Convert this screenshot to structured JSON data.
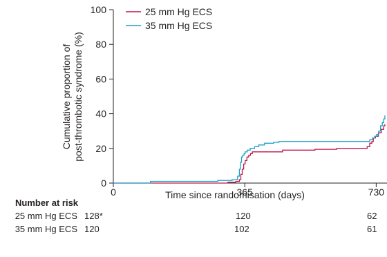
{
  "chart_data": {
    "type": "line",
    "title": "",
    "xlabel": "Time since randomisation (days)",
    "ylabel": [
      "Cumulative proportion of",
      "post-thrombotic syndrome (%)"
    ],
    "xlim": [
      0,
      760
    ],
    "ylim": [
      0,
      100
    ],
    "x_ticks": [
      0,
      365,
      730
    ],
    "y_ticks": [
      0,
      20,
      40,
      60,
      80,
      100
    ],
    "legend": "top-left",
    "series": [
      {
        "name": "25 mm Hg ECS",
        "color": "#c0144c",
        "steps": [
          [
            0,
            0
          ],
          [
            318,
            0.5
          ],
          [
            340,
            1
          ],
          [
            350,
            2
          ],
          [
            354,
            5
          ],
          [
            358,
            8
          ],
          [
            362,
            11
          ],
          [
            366,
            13
          ],
          [
            371,
            15
          ],
          [
            376,
            16
          ],
          [
            381,
            17
          ],
          [
            386,
            18
          ],
          [
            470,
            19
          ],
          [
            560,
            19.5
          ],
          [
            620,
            20
          ],
          [
            690,
            20
          ],
          [
            705,
            21
          ],
          [
            712,
            23
          ],
          [
            718,
            24
          ],
          [
            722,
            26
          ],
          [
            728,
            27
          ],
          [
            736,
            29
          ],
          [
            744,
            31
          ],
          [
            751,
            33
          ],
          [
            754,
            34
          ]
        ]
      },
      {
        "name": "35 mm Hg ECS",
        "color": "#1ba3c6",
        "steps": [
          [
            0,
            0
          ],
          [
            100,
            0
          ],
          [
            103,
            1
          ],
          [
            250,
            1
          ],
          [
            290,
            1.5
          ],
          [
            330,
            2
          ],
          [
            345,
            4
          ],
          [
            350,
            8
          ],
          [
            353,
            12
          ],
          [
            356,
            15
          ],
          [
            359,
            16
          ],
          [
            363,
            17
          ],
          [
            366,
            18
          ],
          [
            372,
            19
          ],
          [
            380,
            20
          ],
          [
            392,
            21
          ],
          [
            404,
            22
          ],
          [
            420,
            23
          ],
          [
            445,
            23.5
          ],
          [
            460,
            24
          ],
          [
            700,
            24
          ],
          [
            712,
            25
          ],
          [
            720,
            26
          ],
          [
            726,
            27
          ],
          [
            731,
            28
          ],
          [
            737,
            30
          ],
          [
            742,
            33
          ],
          [
            747,
            35
          ],
          [
            751,
            37
          ],
          [
            754,
            39
          ]
        ]
      }
    ],
    "number_at_risk": {
      "title": "Number at risk",
      "rows": [
        {
          "label": "25 mm Hg ECS",
          "values": [
            "128*",
            "120",
            "62"
          ]
        },
        {
          "label": "35 mm Hg ECS",
          "values": [
            "120",
            "102",
            "61"
          ]
        }
      ]
    }
  }
}
